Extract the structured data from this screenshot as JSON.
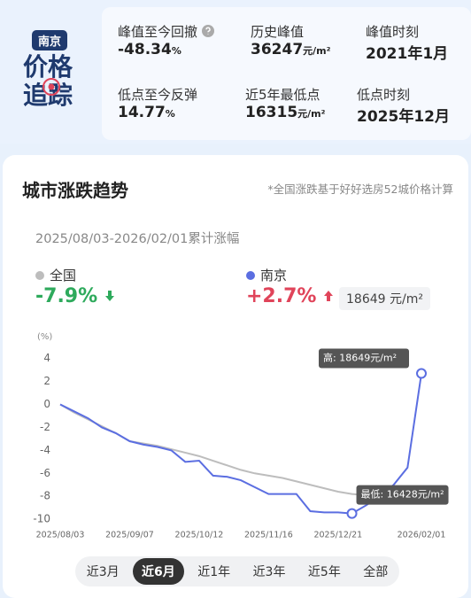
{
  "logo": {
    "badge": "南京",
    "line1": "价格",
    "line2": "追踪"
  },
  "stats": [
    {
      "label": "峰值至今回撤",
      "value": "-48.34",
      "unit": "%"
    },
    {
      "label": "历史峰值",
      "value": "36247",
      "unit": "元/m²"
    },
    {
      "label": "峰值时刻",
      "value": "2021年1月"
    },
    {
      "label": "低点至今反弹",
      "value": "14.77",
      "unit": "%"
    },
    {
      "label": "近5年最低点",
      "value": "16315",
      "unit": "元/m²"
    },
    {
      "label": "低点时刻",
      "value": "2025年12月"
    }
  ],
  "card": {
    "title": "城市涨跌趋势",
    "note": "*全国涨跌基于好好选房52城价格计算",
    "period": "2025/08/03-2026/02/01累计涨幅"
  },
  "legend": [
    {
      "change": "-7.9%"
    },
    {
      "change": "+2.7%",
      "price": "18649",
      "unit": "元/m²"
    }
  ],
  "chart_data": {
    "type": "line",
    "y_label": "(%)",
    "categories": [
      "2025/08/03",
      null,
      null,
      null,
      null,
      "2025/09/07",
      null,
      null,
      null,
      null,
      "2025/10/12",
      null,
      null,
      null,
      null,
      "2025/11/16",
      null,
      null,
      null,
      null,
      "2025/12/21",
      null,
      null,
      null,
      null,
      null,
      "2026/02/01"
    ],
    "series": [
      {
        "name": "全国",
        "color": "#bdbdbd",
        "values": [
          0,
          -0.7,
          -1.3,
          -1.9,
          -2.5,
          -3.2,
          -3.4,
          -3.6,
          -3.9,
          -4.2,
          -4.5,
          -4.9,
          -5.3,
          -5.7,
          -6.0,
          -6.2,
          -6.4,
          -6.7,
          -7.0,
          -7.3,
          -7.6,
          -7.8,
          -7.9,
          -7.9,
          -7.9,
          -7.9,
          -7.9
        ]
      },
      {
        "name": "南京",
        "color": "#5b6ee1",
        "values": [
          0,
          -0.6,
          -1.2,
          -2.0,
          -2.5,
          -3.2,
          -3.5,
          -3.7,
          -4.0,
          -5.0,
          -4.9,
          -6.2,
          -6.3,
          -6.6,
          -7.2,
          -7.8,
          -7.8,
          -7.8,
          -9.3,
          -9.4,
          -9.4,
          -9.5,
          -8.8,
          -8.0,
          -7.0,
          -5.5,
          2.7
        ]
      }
    ],
    "annotations": {
      "high": "高: 18649元/m²",
      "low": "最低: 16428元/m²"
    },
    "ylim": [
      -10.5,
      5
    ],
    "yticks": [
      4,
      2,
      0,
      -2,
      -4,
      -6,
      -8,
      -10
    ],
    "grid": false
  },
  "tabs": [
    "近3月",
    "近6月",
    "近1年",
    "近3年",
    "近5年",
    "全部"
  ],
  "active_tab": 1
}
